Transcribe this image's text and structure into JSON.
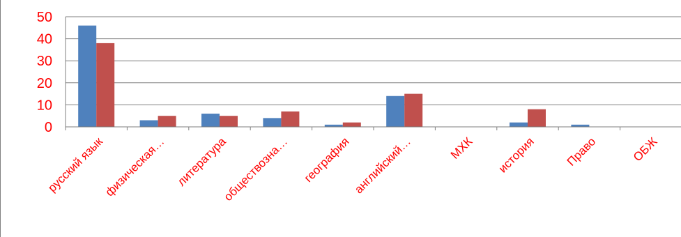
{
  "chart_data": {
    "type": "bar",
    "categories": [
      "русский язык",
      "физическая…",
      "литература",
      "обществозна…",
      "география",
      "английский…",
      "МХК",
      "история",
      "Право",
      "ОБЖ"
    ],
    "series": [
      {
        "values": [
          46,
          3,
          6,
          4,
          1,
          14,
          0,
          2,
          1,
          0
        ],
        "color": "#4f81bd"
      },
      {
        "values": [
          38,
          5,
          5,
          7,
          2,
          15,
          0,
          8,
          0,
          0
        ],
        "color": "#c0504d"
      }
    ],
    "yticks": [
      "0",
      "10",
      "20",
      "30",
      "40",
      "50"
    ],
    "ylim": [
      0,
      50
    ],
    "grid": true,
    "legend": "none",
    "tick_label_color": "#ff0000"
  }
}
